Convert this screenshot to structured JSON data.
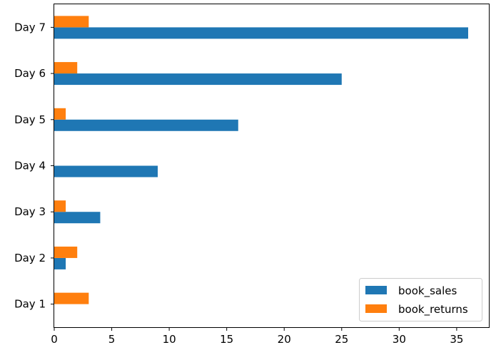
{
  "chart_data": {
    "type": "bar",
    "orientation": "horizontal",
    "categories": [
      "Day 1",
      "Day 2",
      "Day 3",
      "Day 4",
      "Day 5",
      "Day 6",
      "Day 7"
    ],
    "series": [
      {
        "name": "book_sales",
        "color": "#1f77b4",
        "values": [
          0,
          1,
          4,
          9,
          16,
          25,
          36
        ]
      },
      {
        "name": "book_returns",
        "color": "#ff7f0e",
        "values": [
          3,
          2,
          1,
          0,
          1,
          2,
          3
        ]
      }
    ],
    "x_ticks": [
      0,
      5,
      10,
      15,
      20,
      25,
      30,
      35
    ],
    "xlim": [
      0,
      37.8
    ],
    "title": "",
    "xlabel": "",
    "ylabel": "",
    "grid": false,
    "legend_position": "lower-right"
  }
}
